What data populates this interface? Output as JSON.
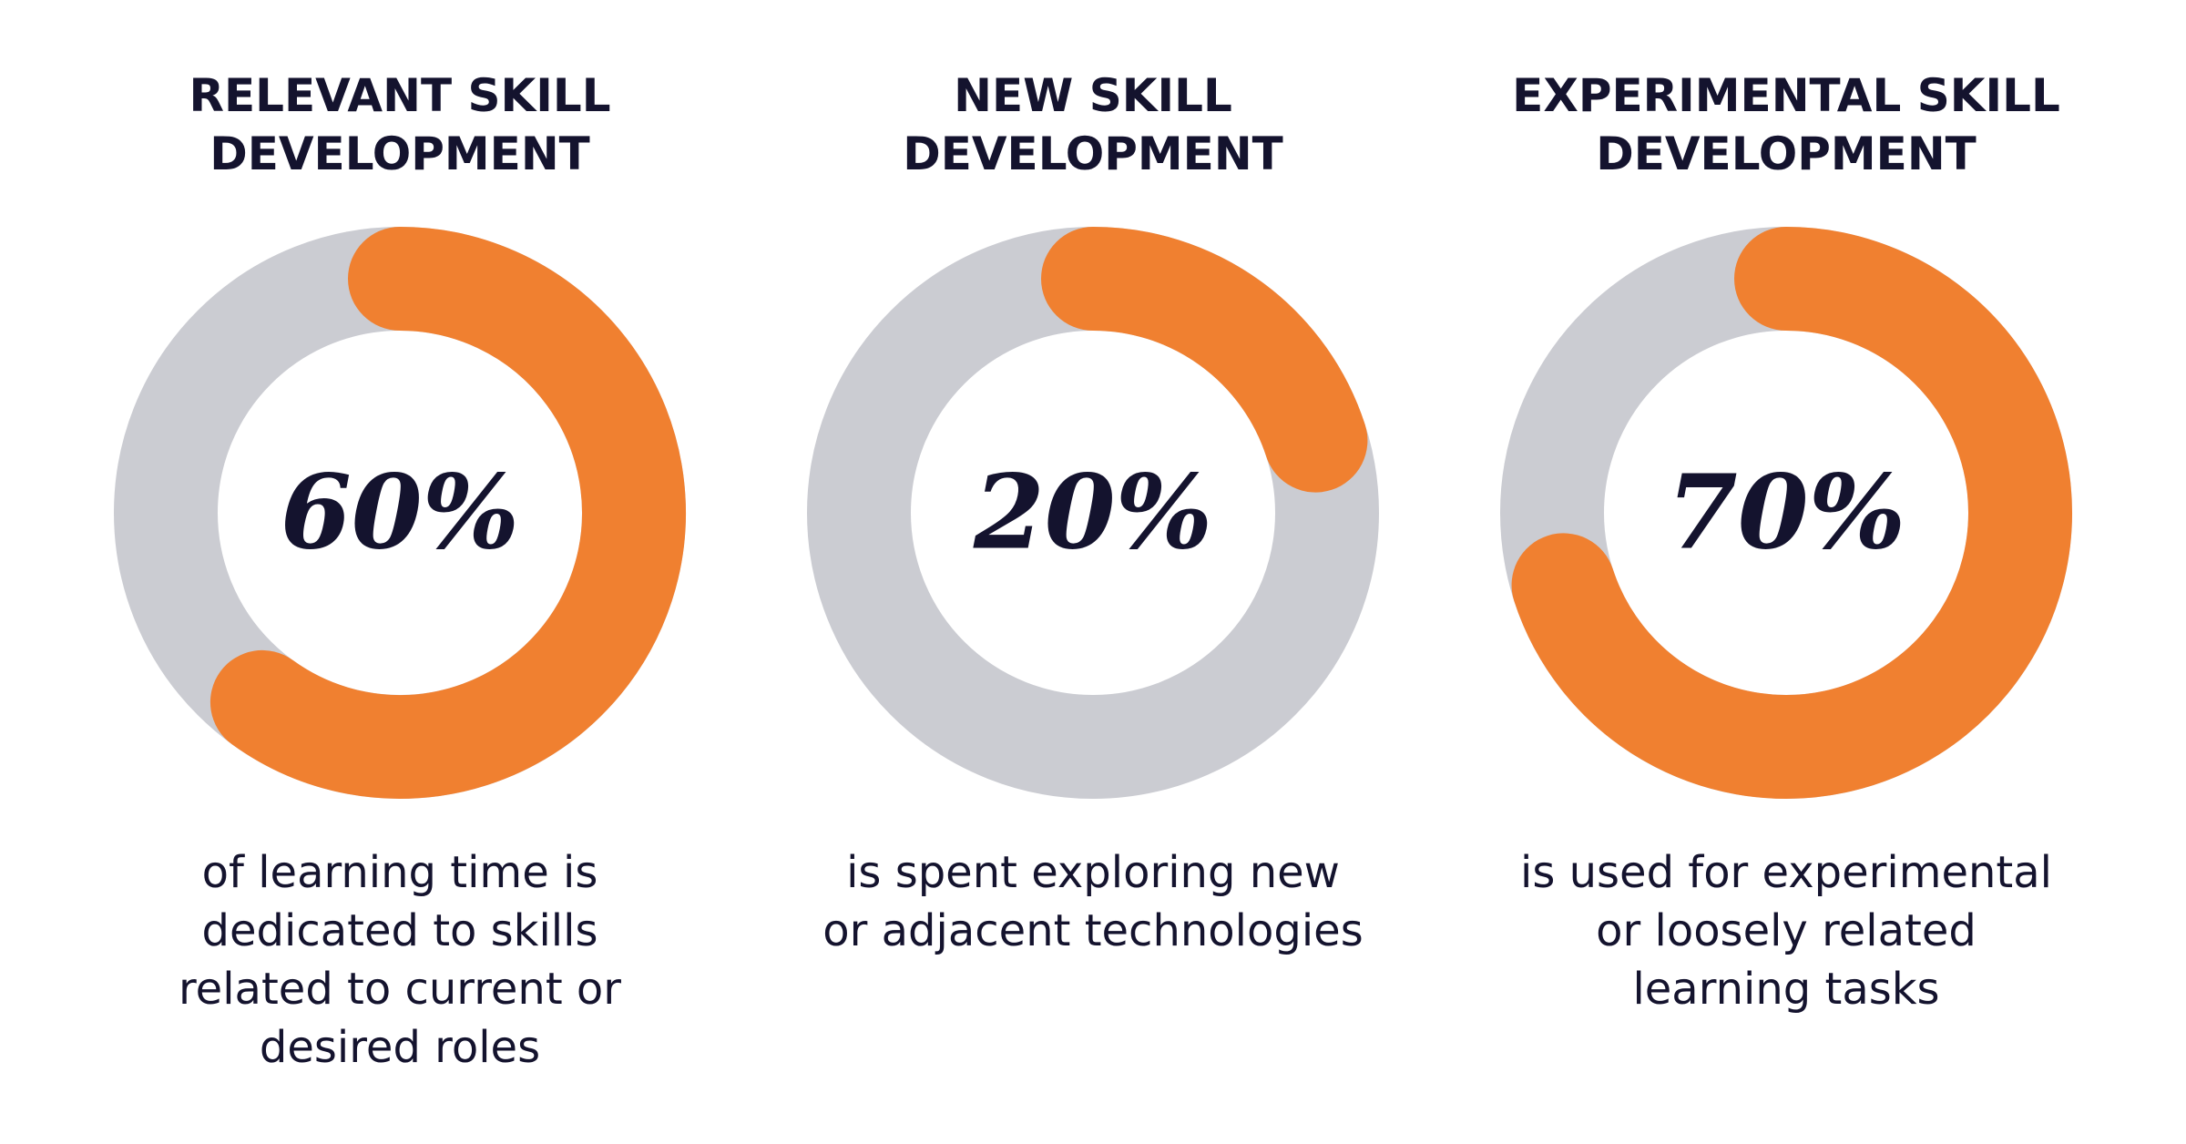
{
  "chart_data": [
    {
      "type": "donut",
      "title": [
        "RELEVANT SKILL",
        "DEVELOPMENT"
      ],
      "values": [
        60
      ],
      "value_labels": [
        "60%"
      ],
      "color": "#f08030",
      "track_color": "#cbccd2",
      "description": [
        "of learning time is",
        "dedicated to skills",
        "related to current or",
        "desired roles"
      ]
    },
    {
      "type": "donut",
      "title": [
        "NEW SKILL",
        "DEVELOPMENT"
      ],
      "values": [
        20
      ],
      "value_labels": [
        "20%"
      ],
      "color": "#f08030",
      "track_color": "#cbccd2",
      "description": [
        "is spent exploring new",
        "or adjacent technologies"
      ]
    },
    {
      "type": "donut",
      "title": [
        "EXPERIMENTAL SKILL",
        "DEVELOPMENT"
      ],
      "values": [
        70
      ],
      "value_labels": [
        "70%"
      ],
      "color": "#f08030",
      "track_color": "#cbccd2",
      "description": [
        "is used for experimental",
        "or loosely related",
        "learning tasks"
      ]
    }
  ]
}
